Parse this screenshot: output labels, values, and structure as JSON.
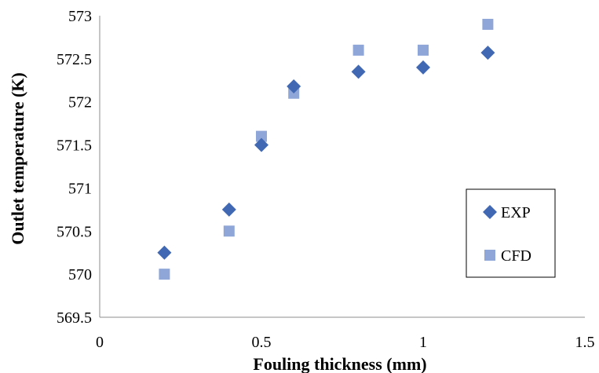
{
  "chart_data": {
    "type": "scatter",
    "title": "",
    "xlabel": "Fouling thickness (mm)",
    "ylabel": "Outlet temperature (K)",
    "xlim": [
      0,
      1.5
    ],
    "ylim": [
      569.5,
      573
    ],
    "x_ticks": [
      "0",
      "0.5",
      "1",
      "1.5"
    ],
    "y_ticks": [
      "569.5",
      "570",
      "570.5",
      "571",
      "571.5",
      "572",
      "572.5",
      "573"
    ],
    "grid": false,
    "legend_position": "right",
    "series": [
      {
        "name": "EXP",
        "marker": "diamond",
        "color": "#4169b3",
        "x": [
          0.2,
          0.4,
          0.5,
          0.6,
          0.8,
          1.0,
          1.2
        ],
        "y": [
          570.25,
          570.75,
          571.5,
          572.18,
          572.35,
          572.4,
          572.57
        ]
      },
      {
        "name": "CFD",
        "marker": "square",
        "color": "#8fa6d9",
        "x": [
          0.2,
          0.4,
          0.5,
          0.6,
          0.8,
          1.0,
          1.2
        ],
        "y": [
          570.0,
          570.5,
          571.6,
          572.1,
          572.6,
          572.6,
          572.9
        ]
      }
    ]
  }
}
